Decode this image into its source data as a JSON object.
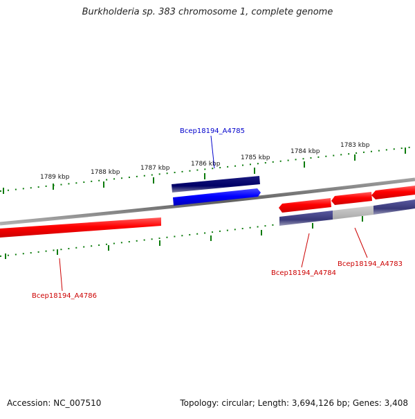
{
  "title": "Burkholderia sp. 383 chromosome 1, complete genome",
  "footer": {
    "accession": "Accession: NC_007510",
    "summary": "Topology: circular; Length: 3,694,126 bp; Genes: 3,408"
  },
  "ticks": [
    "1789 kbp",
    "1788 kbp",
    "1787 kbp",
    "1786 kbp",
    "1785 kbp",
    "1784 kbp",
    "1783 kbp"
  ],
  "genes": [
    {
      "id": "Bcep18194_A4785",
      "color": "#0000cc"
    },
    {
      "id": "Bcep18194_A4786",
      "color": "#cc0000"
    },
    {
      "id": "Bcep18194_A4784",
      "color": "#cc0000"
    },
    {
      "id": "Bcep18194_A4783",
      "color": "#cc0000"
    }
  ],
  "colors": {
    "backbone": "#777777",
    "tick": "#0a7a0a",
    "forward_gene": "#0000ff",
    "reverse_gene": "#ff0000",
    "forward_cds_band": "#000066",
    "reverse_cds_band": "#3a3a80"
  }
}
